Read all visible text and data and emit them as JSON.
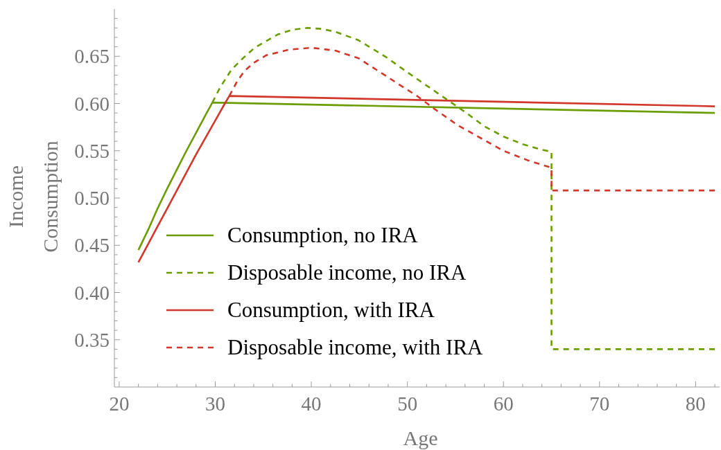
{
  "chart_data": {
    "type": "line",
    "xlabel": "Age",
    "ylabel": "Income\nConsumption",
    "xlim": [
      19.5,
      82.5
    ],
    "ylim": [
      0.3,
      0.7
    ],
    "xticks": [
      20,
      {
        "value": 22,
        "label": null
      },
      {
        "value": 24,
        "label": null
      },
      {
        "value": 26,
        "label": null
      },
      {
        "value": 28,
        "label": null
      },
      30,
      {
        "value": 32,
        "label": null
      },
      {
        "value": 34,
        "label": null
      },
      {
        "value": 36,
        "label": null
      },
      {
        "value": 38,
        "label": null
      },
      40,
      {
        "value": 42,
        "label": null
      },
      {
        "value": 44,
        "label": null
      },
      {
        "value": 46,
        "label": null
      },
      {
        "value": 48,
        "label": null
      },
      50,
      {
        "value": 52,
        "label": null
      },
      {
        "value": 54,
        "label": null
      },
      {
        "value": 56,
        "label": null
      },
      {
        "value": 58,
        "label": null
      },
      60,
      {
        "value": 62,
        "label": null
      },
      {
        "value": 64,
        "label": null
      },
      {
        "value": 66,
        "label": null
      },
      {
        "value": 68,
        "label": null
      },
      70,
      {
        "value": 72,
        "label": null
      },
      {
        "value": 74,
        "label": null
      },
      {
        "value": 76,
        "label": null
      },
      {
        "value": 78,
        "label": null
      },
      80,
      {
        "value": 82,
        "label": null
      }
    ],
    "yticks": [
      {
        "value": 0.31,
        "label": null
      },
      {
        "value": 0.32,
        "label": null
      },
      {
        "value": 0.33,
        "label": null
      },
      {
        "value": 0.34,
        "label": null
      },
      0.35,
      {
        "value": 0.36,
        "label": null
      },
      {
        "value": 0.37,
        "label": null
      },
      {
        "value": 0.38,
        "label": null
      },
      {
        "value": 0.39,
        "label": null
      },
      {
        "value": 0.4,
        "label": "0.40"
      },
      {
        "value": 0.41,
        "label": null
      },
      {
        "value": 0.42,
        "label": null
      },
      {
        "value": 0.43,
        "label": null
      },
      {
        "value": 0.44,
        "label": null
      },
      0.45,
      {
        "value": 0.46,
        "label": null
      },
      {
        "value": 0.47,
        "label": null
      },
      {
        "value": 0.48,
        "label": null
      },
      {
        "value": 0.49,
        "label": null
      },
      {
        "value": 0.5,
        "label": "0.50"
      },
      {
        "value": 0.51,
        "label": null
      },
      {
        "value": 0.52,
        "label": null
      },
      {
        "value": 0.53,
        "label": null
      },
      {
        "value": 0.54,
        "label": null
      },
      0.55,
      {
        "value": 0.56,
        "label": null
      },
      {
        "value": 0.57,
        "label": null
      },
      {
        "value": 0.58,
        "label": null
      },
      {
        "value": 0.59,
        "label": null
      },
      {
        "value": 0.6,
        "label": "0.60"
      },
      {
        "value": 0.61,
        "label": null
      },
      {
        "value": 0.62,
        "label": null
      },
      {
        "value": 0.63,
        "label": null
      },
      {
        "value": 0.64,
        "label": null
      },
      0.65,
      {
        "value": 0.66,
        "label": null
      },
      {
        "value": 0.67,
        "label": null
      },
      {
        "value": 0.68,
        "label": null
      },
      {
        "value": 0.69,
        "label": null
      }
    ],
    "legend": "bottom left",
    "series": [
      {
        "name": "Consumption, no IRA",
        "color": "#6b9d00",
        "line_style": "solid",
        "x": [
          22,
          23,
          24,
          25,
          26,
          27,
          28,
          29,
          29.7,
          82
        ],
        "values": [
          0.445,
          0.466,
          0.489,
          0.51,
          0.53,
          0.55,
          0.569,
          0.588,
          0.601,
          0.59
        ]
      },
      {
        "name": "Disposable income, no IRA",
        "color": "#6b9d00",
        "line_style": "dashed",
        "x": [
          29.7,
          30.5,
          31.7,
          33,
          34.1,
          36.5,
          38,
          39.6,
          41,
          42.5,
          44.9,
          47.8,
          50,
          52,
          54,
          56,
          58,
          60,
          62,
          64,
          65,
          65,
          82
        ],
        "values": [
          0.601,
          0.617,
          0.636,
          0.649,
          0.659,
          0.673,
          0.678,
          0.68,
          0.679,
          0.676,
          0.667,
          0.649,
          0.633,
          0.619,
          0.605,
          0.591,
          0.576,
          0.565,
          0.557,
          0.551,
          0.549,
          0.34,
          0.34
        ]
      },
      {
        "name": "Consumption, with IRA",
        "color": "#d1372b",
        "line_style": "solid",
        "x": [
          22,
          23,
          24,
          25,
          26,
          27,
          28,
          29,
          30,
          31,
          31.46,
          82
        ],
        "values": [
          0.432,
          0.451,
          0.47,
          0.489,
          0.508,
          0.527,
          0.546,
          0.564,
          0.582,
          0.6,
          0.608,
          0.597
        ]
      },
      {
        "name": "Disposable income, with IRA",
        "color": "#d1372b",
        "line_style": "dashed",
        "x": [
          31.46,
          32.2,
          33,
          34,
          35.3,
          37.7,
          40,
          42.5,
          44.9,
          47.8,
          49,
          51,
          52.85,
          55.25,
          57.7,
          60,
          62.5,
          65,
          65,
          82
        ],
        "values": [
          0.608,
          0.622,
          0.634,
          0.643,
          0.651,
          0.657,
          0.659,
          0.656,
          0.648,
          0.629,
          0.621,
          0.608,
          0.594,
          0.577,
          0.563,
          0.55,
          0.54,
          0.532,
          0.508,
          0.508
        ]
      }
    ]
  }
}
